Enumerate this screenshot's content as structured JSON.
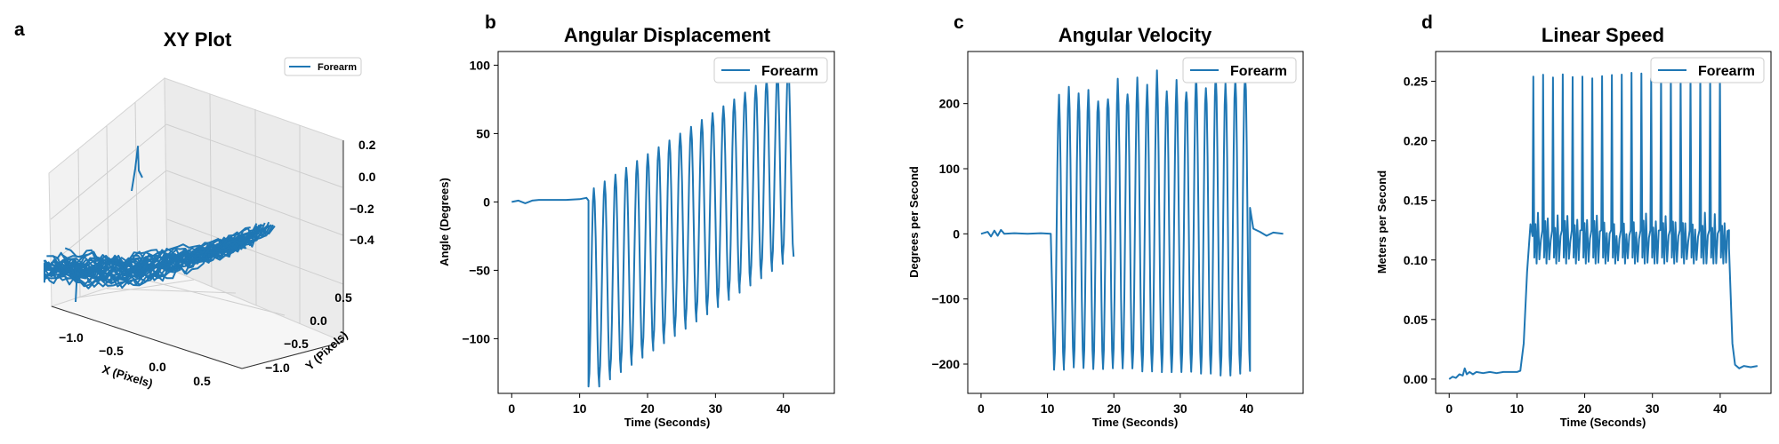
{
  "colors": {
    "series": "#1f77b4"
  },
  "panel_a": {
    "letter": "a",
    "title": "XY Plot",
    "legend": "Forearm",
    "xlabel": "X (Pixels)",
    "ylabel": "Y (Pixels)",
    "xticks": [
      "−1.0",
      "−0.5",
      "0.0",
      "0.5"
    ],
    "yticks": [
      "−1.0",
      "−0.5",
      "0.0",
      "0.5"
    ],
    "zticks": [
      "0.2",
      "0.0",
      "−0.2",
      "−0.4"
    ]
  },
  "chart_data": [
    {
      "panel": "b",
      "type": "line",
      "title": "Angular Displacement",
      "xlabel": "Time (Seconds)",
      "ylabel": "Angle (Degrees)",
      "xlim": [
        -2,
        47.5
      ],
      "ylim": [
        -140,
        110
      ],
      "xticks": [
        0,
        10,
        20,
        30,
        40
      ],
      "yticks": [
        100,
        50,
        0,
        -50,
        -100
      ],
      "legend": "top-right",
      "series": [
        {
          "name": "Forearm",
          "segments": [
            {
              "kind": "points",
              "x": [
                0,
                1,
                1.5,
                2,
                2.5,
                3,
                4,
                6,
                8,
                10,
                11,
                11.3
              ],
              "y": [
                0,
                1,
                0,
                -1,
                0,
                1,
                1.5,
                1.5,
                1.5,
                2,
                3,
                1
              ]
            },
            {
              "kind": "osc",
              "t0": 11.3,
              "t1": 41.5,
              "n": 19,
              "min0": -135,
              "min1": -40,
              "max0": 10,
              "max1": 100
            }
          ]
        }
      ]
    },
    {
      "panel": "c",
      "type": "line",
      "title": "Angular Velocity",
      "xlabel": "Time (Seconds)",
      "ylabel": "Degrees per Second",
      "xlim": [
        -2,
        48.5
      ],
      "ylim": [
        -245,
        280
      ],
      "xticks": [
        0,
        10,
        20,
        30,
        40
      ],
      "yticks": [
        200,
        100,
        0,
        -100,
        -200
      ],
      "legend": "top-right",
      "series": [
        {
          "name": "Forearm",
          "segments": [
            {
              "kind": "points",
              "x": [
                0,
                1,
                1.5,
                2,
                2.5,
                3,
                3.5,
                5,
                7,
                9,
                10.5
              ],
              "y": [
                0,
                3,
                -4,
                5,
                -3,
                6,
                0,
                1,
                0,
                1,
                0
              ]
            },
            {
              "kind": "osc",
              "t0": 11,
              "t1": 40.5,
              "n": 20,
              "min0": -205,
              "min1": -215,
              "max0": 210,
              "max1": 240,
              "jitter": 25
            },
            {
              "kind": "points",
              "x": [
                40.5,
                41,
                42,
                43,
                44,
                45.5
              ],
              "y": [
                40,
                8,
                3,
                -3,
                2,
                0
              ]
            }
          ]
        }
      ]
    },
    {
      "panel": "d",
      "type": "line",
      "title": "Linear Speed",
      "xlabel": "Time (Seconds)",
      "ylabel": "Meters per Second",
      "xlim": [
        -2,
        47.5
      ],
      "ylim": [
        -0.012,
        0.275
      ],
      "xticks": [
        0,
        10,
        20,
        30,
        40
      ],
      "yticks": [
        0.25,
        0.2,
        0.15,
        0.1,
        0.05,
        0.0
      ],
      "legend": "top-right",
      "series": [
        {
          "name": "Forearm",
          "segments": [
            {
              "kind": "points",
              "x": [
                0,
                0.5,
                1,
                1.5,
                2,
                2.3,
                2.6,
                3,
                3.5,
                4,
                5,
                6,
                7,
                8,
                9,
                10,
                10.5,
                11,
                11.5,
                12,
                12.3
              ],
              "y": [
                0,
                0.002,
                0.001,
                0.004,
                0.003,
                0.009,
                0.004,
                0.006,
                0.004,
                0.006,
                0.005,
                0.006,
                0.005,
                0.006,
                0.006,
                0.006,
                0.007,
                0.03,
                0.09,
                0.13,
                0.12
              ]
            },
            {
              "kind": "speed",
              "t0": 12.3,
              "t1": 41.3,
              "n": 20,
              "peak": 0.258,
              "low": 0.097,
              "mid": 0.125
            },
            {
              "kind": "points",
              "x": [
                41.3,
                41.8,
                42.2,
                42.8,
                43.5,
                44.5,
                45.5
              ],
              "y": [
                0.11,
                0.03,
                0.012,
                0.009,
                0.011,
                0.01,
                0.011
              ]
            }
          ]
        }
      ]
    }
  ]
}
